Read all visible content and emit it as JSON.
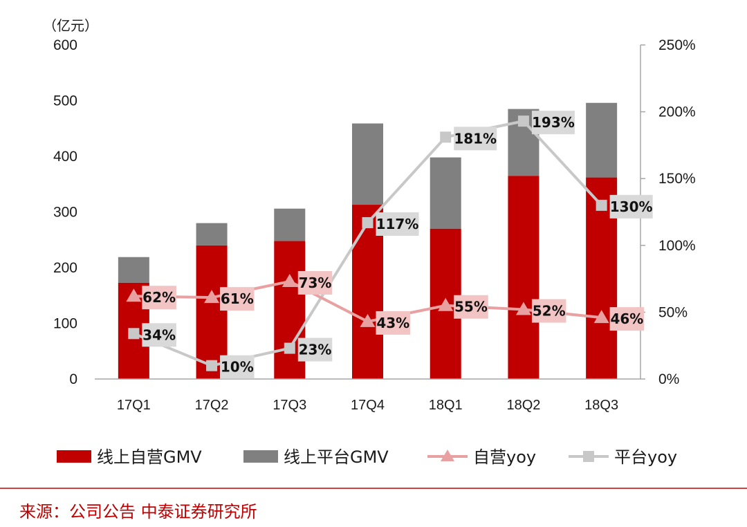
{
  "colors": {
    "self_bar": "#c00000",
    "platform_bar": "#808080",
    "self_line": "#e8a0a0",
    "self_label_bg": "#f2c4c4",
    "platform_line": "#c8c8c8",
    "platform_label_bg": "#d9d9d9",
    "source_text": "#c00000",
    "axis": "#a6a6a6"
  },
  "chart_data": {
    "type": "bar",
    "stacked": true,
    "categories": [
      "17Q1",
      "17Q2",
      "17Q3",
      "17Q4",
      "18Q1",
      "18Q2",
      "18Q3"
    ],
    "y_unit": "（亿元）",
    "ylim": [
      0,
      600
    ],
    "yticks": [
      "0",
      "100",
      "200",
      "300",
      "400",
      "500",
      "600"
    ],
    "y2lim": [
      0,
      2.5
    ],
    "y2ticks": [
      "0%",
      "50%",
      "100%",
      "150%",
      "200%",
      "250%"
    ],
    "grid": false,
    "legend_position": "bottom",
    "series": [
      {
        "name": "线上自营GMV",
        "kind": "bar",
        "axis": "left",
        "values": [
          173,
          240,
          248,
          313,
          270,
          365,
          362
        ]
      },
      {
        "name": "线上平台GMV",
        "kind": "bar",
        "axis": "left",
        "values": [
          46,
          40,
          58,
          146,
          128,
          120,
          134
        ]
      },
      {
        "name": "自营yoy",
        "kind": "line",
        "marker": "triangle",
        "axis": "right",
        "values": [
          0.62,
          0.61,
          0.73,
          0.43,
          0.55,
          0.52,
          0.46
        ],
        "labels": [
          "62%",
          "61%",
          "73%",
          "43%",
          "55%",
          "52%",
          "46%"
        ]
      },
      {
        "name": "平台yoy",
        "kind": "line",
        "marker": "square",
        "axis": "right",
        "values": [
          0.34,
          0.1,
          0.23,
          1.17,
          1.81,
          1.93,
          1.3
        ],
        "labels": [
          "34%",
          "10%",
          "23%",
          "117%",
          "181%",
          "193%",
          "130%"
        ]
      }
    ]
  },
  "source_text": "来源：公司公告  中泰证券研究所"
}
